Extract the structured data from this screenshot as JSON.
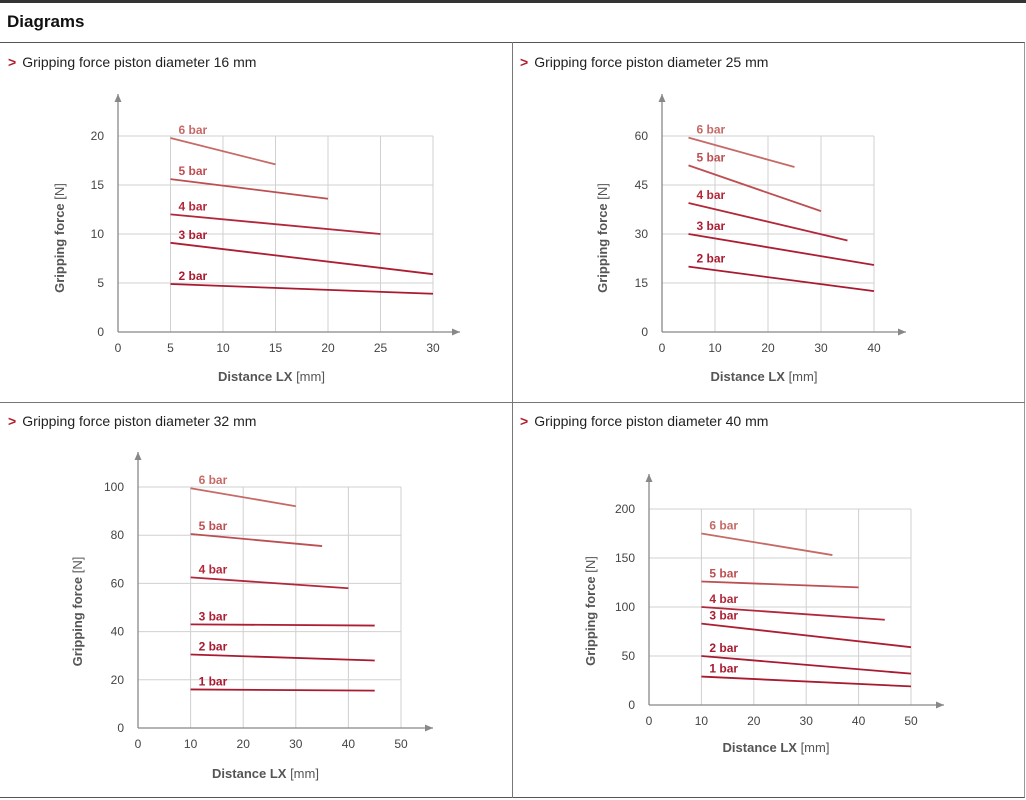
{
  "page": {
    "title": "Diagrams"
  },
  "panels": [
    {
      "title": "Gripping force piston diameter 16 mm",
      "chart_data": {
        "type": "line",
        "title": "Gripping force piston diameter 16 mm",
        "xlabel": "Distance LX",
        "xunit": "[mm]",
        "ylabel": "Gripping force",
        "yunit": "[N]",
        "xlim": [
          0,
          30
        ],
        "ylim": [
          0,
          20
        ],
        "xticks": [
          0,
          5,
          10,
          15,
          20,
          25,
          30
        ],
        "yticks": [
          0,
          5,
          10,
          15,
          20
        ],
        "grid": true,
        "series": [
          {
            "name": "6 bar",
            "color": "#c56a66",
            "x": [
              5,
              15
            ],
            "y": [
              19.8,
              17.1
            ]
          },
          {
            "name": "5 bar",
            "color": "#bd4f52",
            "x": [
              5,
              20
            ],
            "y": [
              15.6,
              13.6
            ]
          },
          {
            "name": "4 bar",
            "color": "#b2283a",
            "x": [
              5,
              25
            ],
            "y": [
              12.0,
              10.0
            ]
          },
          {
            "name": "3 bar",
            "color": "#ad1e33",
            "x": [
              5,
              30
            ],
            "y": [
              9.1,
              5.9
            ]
          },
          {
            "name": "2 bar",
            "color": "#a81a30",
            "x": [
              5,
              30
            ],
            "y": [
              4.9,
              3.9
            ]
          }
        ]
      }
    },
    {
      "title": "Gripping force piston diameter 25 mm",
      "chart_data": {
        "type": "line",
        "title": "Gripping force piston diameter 25 mm",
        "xlabel": "Distance LX",
        "xunit": "[mm]",
        "ylabel": "Gripping force",
        "yunit": "[N]",
        "xlim": [
          0,
          40
        ],
        "ylim": [
          0,
          60
        ],
        "xticks": [
          0,
          10,
          20,
          30,
          40
        ],
        "yticks": [
          0,
          15,
          30,
          45,
          60
        ],
        "grid": true,
        "series": [
          {
            "name": "6 bar",
            "color": "#c56a66",
            "x": [
              5,
              25
            ],
            "y": [
              59.5,
              50.5
            ]
          },
          {
            "name": "5 bar",
            "color": "#bd4f52",
            "x": [
              5,
              30
            ],
            "y": [
              51.0,
              37.0
            ]
          },
          {
            "name": "4 bar",
            "color": "#b2283a",
            "x": [
              5,
              35
            ],
            "y": [
              39.5,
              28.0
            ]
          },
          {
            "name": "3 bar",
            "color": "#ad1e33",
            "x": [
              5,
              40
            ],
            "y": [
              30.0,
              20.5
            ]
          },
          {
            "name": "2 bar",
            "color": "#a81a30",
            "x": [
              5,
              40
            ],
            "y": [
              20.0,
              12.5
            ]
          }
        ]
      }
    },
    {
      "title": "Gripping force piston diameter 32 mm",
      "chart_data": {
        "type": "line",
        "title": "Gripping force piston diameter 32 mm",
        "xlabel": "Distance LX",
        "xunit": "[mm]",
        "ylabel": "Gripping force",
        "yunit": "[N]",
        "xlim": [
          0,
          50
        ],
        "ylim": [
          0,
          100
        ],
        "xticks": [
          0,
          10,
          20,
          30,
          40,
          50
        ],
        "yticks": [
          0,
          20,
          40,
          60,
          80,
          100
        ],
        "grid": true,
        "series": [
          {
            "name": "6 bar",
            "color": "#c56a66",
            "x": [
              10,
              30
            ],
            "y": [
              99.5,
              92.0
            ]
          },
          {
            "name": "5 bar",
            "color": "#bd4f52",
            "x": [
              10,
              35
            ],
            "y": [
              80.5,
              75.5
            ]
          },
          {
            "name": "4 bar",
            "color": "#b2283a",
            "x": [
              10,
              40
            ],
            "y": [
              62.5,
              58.0
            ]
          },
          {
            "name": "3 bar",
            "color": "#ad1e33",
            "x": [
              10,
              45
            ],
            "y": [
              43.0,
              42.5
            ]
          },
          {
            "name": "2 bar",
            "color": "#a81a30",
            "x": [
              10,
              45
            ],
            "y": [
              30.5,
              28.0
            ]
          },
          {
            "name": "1 bar",
            "color": "#a81a30",
            "x": [
              10,
              45
            ],
            "y": [
              16.0,
              15.5
            ]
          }
        ]
      }
    },
    {
      "title": "Gripping force piston diameter 40 mm",
      "chart_data": {
        "type": "line",
        "title": "Gripping force piston diameter 40 mm",
        "xlabel": "Distance LX",
        "xunit": "[mm]",
        "ylabel": "Gripping force",
        "yunit": "[N]",
        "xlim": [
          0,
          50
        ],
        "ylim": [
          0,
          200
        ],
        "xticks": [
          0,
          10,
          20,
          30,
          40,
          50
        ],
        "yticks": [
          0,
          50,
          100,
          150,
          200
        ],
        "grid": true,
        "series": [
          {
            "name": "6 bar",
            "color": "#c56a66",
            "x": [
              10,
              35
            ],
            "y": [
              175,
              153
            ]
          },
          {
            "name": "5 bar",
            "color": "#bd4f52",
            "x": [
              10,
              40
            ],
            "y": [
              126,
              120
            ]
          },
          {
            "name": "4 bar",
            "color": "#b2283a",
            "x": [
              10,
              45
            ],
            "y": [
              100,
              87
            ]
          },
          {
            "name": "3 bar",
            "color": "#ad1e33",
            "x": [
              10,
              50
            ],
            "y": [
              83,
              59
            ]
          },
          {
            "name": "2 bar",
            "color": "#a81a30",
            "x": [
              10,
              50
            ],
            "y": [
              50,
              32
            ]
          },
          {
            "name": "1 bar",
            "color": "#a81a30",
            "x": [
              10,
              50
            ],
            "y": [
              29,
              19
            ]
          }
        ]
      }
    }
  ]
}
